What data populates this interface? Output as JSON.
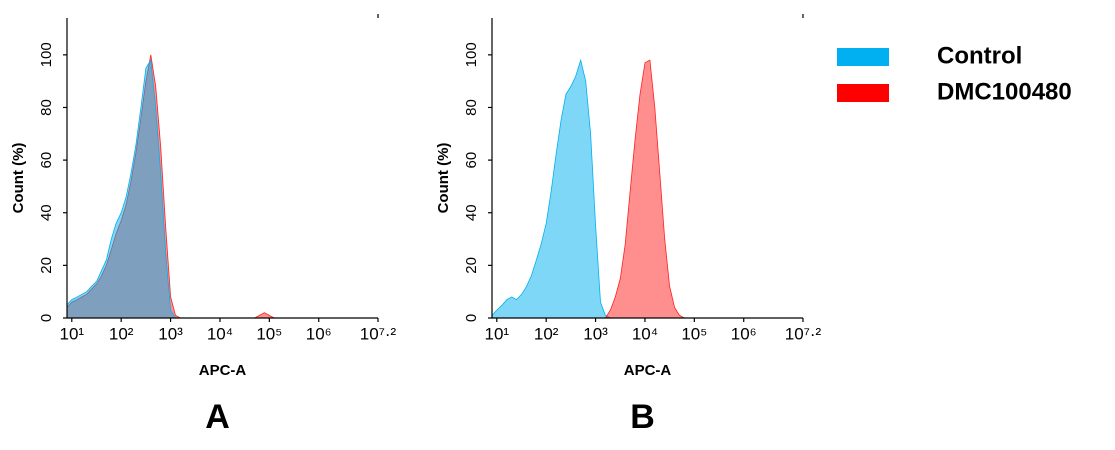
{
  "chart_data": [
    {
      "type": "area",
      "panel_label": "A",
      "xlabel": "APC-A",
      "ylabel": "Count  (%)",
      "xscale": "log",
      "xlim": [
        8,
        15848932
      ],
      "ylim": [
        0,
        114
      ],
      "xticks": [
        {
          "value": 10,
          "label": "10¹"
        },
        {
          "value": 100,
          "label": "10²"
        },
        {
          "value": 1000,
          "label": "10³"
        },
        {
          "value": 10000,
          "label": "10⁴"
        },
        {
          "value": 100000,
          "label": "10⁵"
        },
        {
          "value": 1000000,
          "label": "10⁶"
        },
        {
          "value": 15848932,
          "label": "10⁷·²"
        }
      ],
      "yticks": [
        0,
        20,
        40,
        60,
        80,
        100
      ],
      "x": [
        8,
        10,
        13,
        16,
        20,
        25,
        32,
        40,
        50,
        63,
        79,
        100,
        126,
        158,
        200,
        251,
        316,
        398,
        501,
        631,
        794,
        1000,
        1259,
        1585,
        1995,
        2512,
        3162,
        3981,
        5012,
        6310,
        7943,
        10000,
        12589,
        15849,
        19953,
        25119,
        31623,
        39811,
        50119,
        63096,
        79433,
        100000,
        125893,
        158489,
        199526,
        251189,
        316228,
        1000000,
        10000000,
        15848932
      ],
      "series": [
        {
          "name": "DMC100480",
          "color": "#ff2020",
          "values": [
            4,
            6,
            7,
            8,
            9,
            11,
            13,
            16,
            20,
            26,
            32,
            37,
            43,
            52,
            63,
            76,
            90,
            100,
            88,
            65,
            35,
            8,
            1,
            0,
            0,
            0,
            0,
            0,
            0,
            0,
            0,
            0,
            0,
            0,
            0,
            0,
            0,
            0,
            0,
            1,
            2,
            1,
            0,
            0,
            0,
            0,
            0,
            0,
            0,
            0
          ]
        },
        {
          "name": "Control",
          "color": "#00b0f0",
          "values": [
            5,
            7,
            8,
            9,
            10,
            12,
            14,
            18,
            22,
            30,
            36,
            40,
            46,
            55,
            66,
            80,
            95,
            98,
            80,
            55,
            25,
            3,
            0,
            0,
            0,
            0,
            0,
            0,
            0,
            0,
            0,
            0,
            0,
            0,
            0,
            0,
            0,
            0,
            0,
            0,
            0,
            0,
            0,
            0,
            0,
            0,
            0,
            0,
            0,
            0
          ]
        }
      ]
    },
    {
      "type": "area",
      "panel_label": "B",
      "xlabel": "APC-A",
      "ylabel": "Count  (%)",
      "xscale": "log",
      "xlim": [
        8,
        15848932
      ],
      "ylim": [
        0,
        114
      ],
      "xticks": [
        {
          "value": 10,
          "label": "10¹"
        },
        {
          "value": 100,
          "label": "10²"
        },
        {
          "value": 1000,
          "label": "10³"
        },
        {
          "value": 10000,
          "label": "10⁴"
        },
        {
          "value": 100000,
          "label": "10⁵"
        },
        {
          "value": 1000000,
          "label": "10⁶"
        },
        {
          "value": 15848932,
          "label": "10⁷·²"
        }
      ],
      "yticks": [
        0,
        20,
        40,
        60,
        80,
        100
      ],
      "x": [
        8,
        10,
        13,
        16,
        20,
        25,
        32,
        40,
        50,
        63,
        79,
        100,
        126,
        158,
        200,
        251,
        316,
        398,
        501,
        631,
        794,
        1000,
        1259,
        1585,
        1995,
        2512,
        3162,
        3981,
        5012,
        6310,
        7943,
        10000,
        12589,
        15849,
        19953,
        25119,
        31623,
        39811,
        50119,
        63096,
        79433,
        100000,
        125893,
        158489,
        199526,
        251189,
        316228,
        1000000,
        10000000,
        15848932
      ],
      "series": [
        {
          "name": "Control",
          "color": "#00b0f0",
          "values": [
            1,
            3,
            5,
            7,
            8,
            7,
            9,
            12,
            16,
            22,
            28,
            36,
            48,
            62,
            75,
            85,
            88,
            92,
            98,
            90,
            70,
            35,
            6,
            1,
            0,
            0,
            0,
            0,
            0,
            0,
            0,
            0,
            0,
            0,
            0,
            0,
            0,
            0,
            0,
            0,
            0,
            0,
            0,
            0,
            0,
            0,
            0,
            0,
            0,
            0
          ]
        },
        {
          "name": "DMC100480",
          "color": "#ff2020",
          "values": [
            0,
            0,
            0,
            0,
            0,
            0,
            0,
            0,
            0,
            0,
            0,
            0,
            0,
            0,
            0,
            0,
            0,
            0,
            0,
            0,
            0,
            0,
            0,
            0,
            3,
            8,
            15,
            28,
            48,
            68,
            85,
            97,
            98,
            80,
            55,
            30,
            12,
            4,
            1,
            0,
            0,
            0,
            0,
            0,
            0,
            0,
            0,
            0,
            0,
            0
          ]
        }
      ]
    }
  ]
}
